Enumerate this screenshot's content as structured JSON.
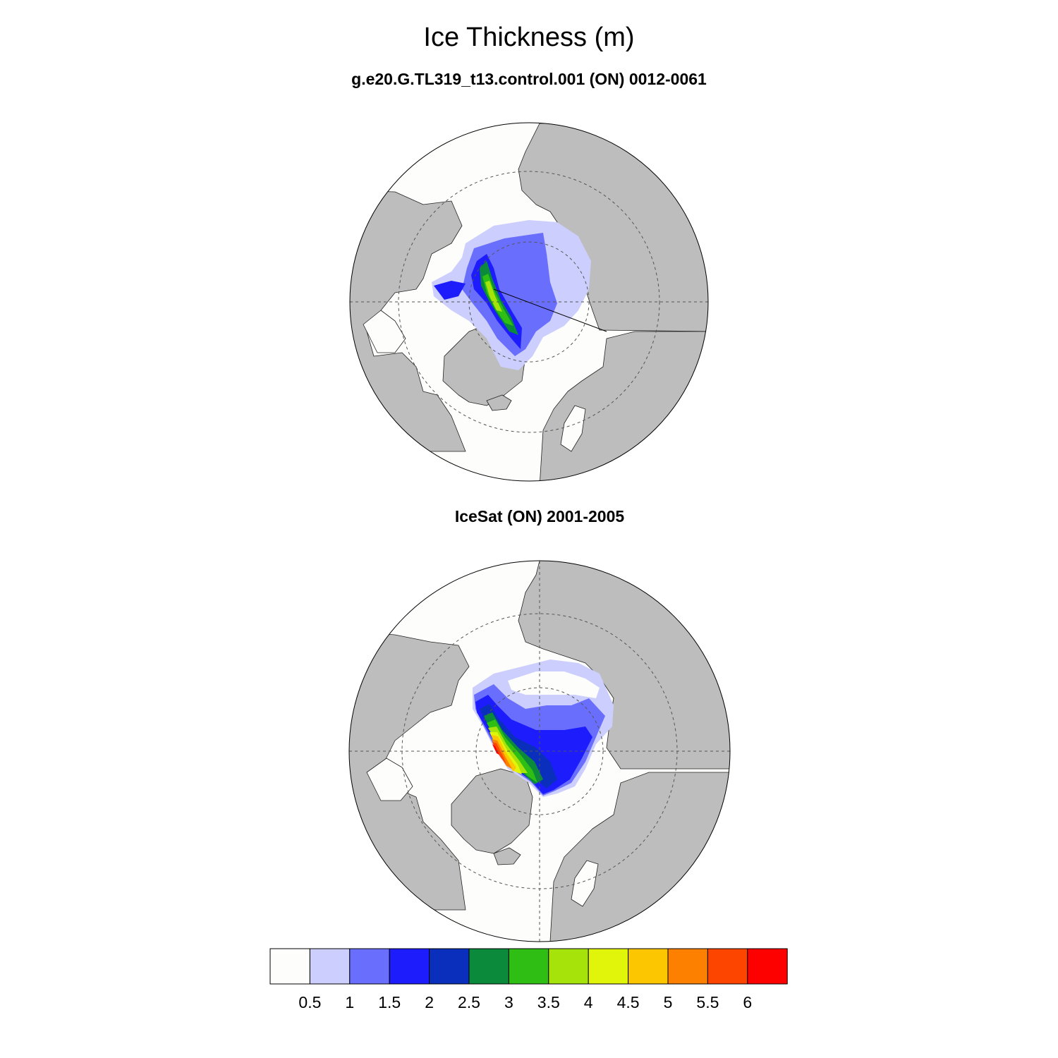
{
  "title": "Ice Thickness (m)",
  "panels": [
    {
      "subtitle": "g.e20.G.TL319_t13.control.001 (ON) 0012-0061"
    },
    {
      "subtitle": "IceSat (ON) 2001-2005"
    }
  ],
  "colors": {
    "land": "#bdbdbd",
    "ocean": "#fdfdfb",
    "levels": [
      "#fdfdfb",
      "#cccefd",
      "#6a6efd",
      "#1c1cfd",
      "#0a2fbd",
      "#0a8a3a",
      "#2fbf14",
      "#a6e30a",
      "#e1f50a",
      "#fcc600",
      "#fd8000",
      "#fd4500",
      "#fd0000"
    ]
  },
  "colorbar": {
    "labels": [
      "0.5",
      "1",
      "1.5",
      "2",
      "2.5",
      "3",
      "3.5",
      "4",
      "4.5",
      "5",
      "5.5",
      "6"
    ]
  }
}
